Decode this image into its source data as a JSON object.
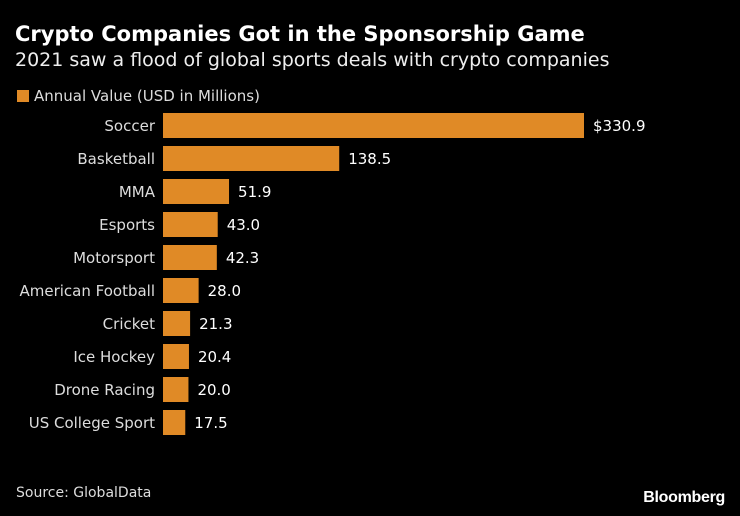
{
  "chart_data": {
    "type": "bar",
    "orientation": "horizontal",
    "title": "Crypto Companies Got in the Sponsorship Game",
    "subtitle": "2021 saw a flood of global sports deals with crypto companies",
    "categories": [
      "Soccer",
      "Basketball",
      "MMA",
      "Esports",
      "Motorsport",
      "American Football",
      "Cricket",
      "Ice Hockey",
      "Drone Racing",
      "US College Sport"
    ],
    "series": [
      {
        "name": "Annual Value (USD in Millions)",
        "values": [
          330.9,
          138.5,
          51.9,
          43.0,
          42.3,
          28.0,
          21.3,
          20.4,
          20.0,
          17.5
        ],
        "color": "#E08A26"
      }
    ],
    "data_labels": [
      "$330.9",
      "138.5",
      "51.9",
      "43.0",
      "42.3",
      "28.0",
      "21.3",
      "20.4",
      "20.0",
      "17.5"
    ],
    "xlim": [
      0,
      330.9
    ],
    "grid": false,
    "legend_position": "top-left"
  },
  "source": "Source: GlobalData",
  "logo": "Bloomberg"
}
